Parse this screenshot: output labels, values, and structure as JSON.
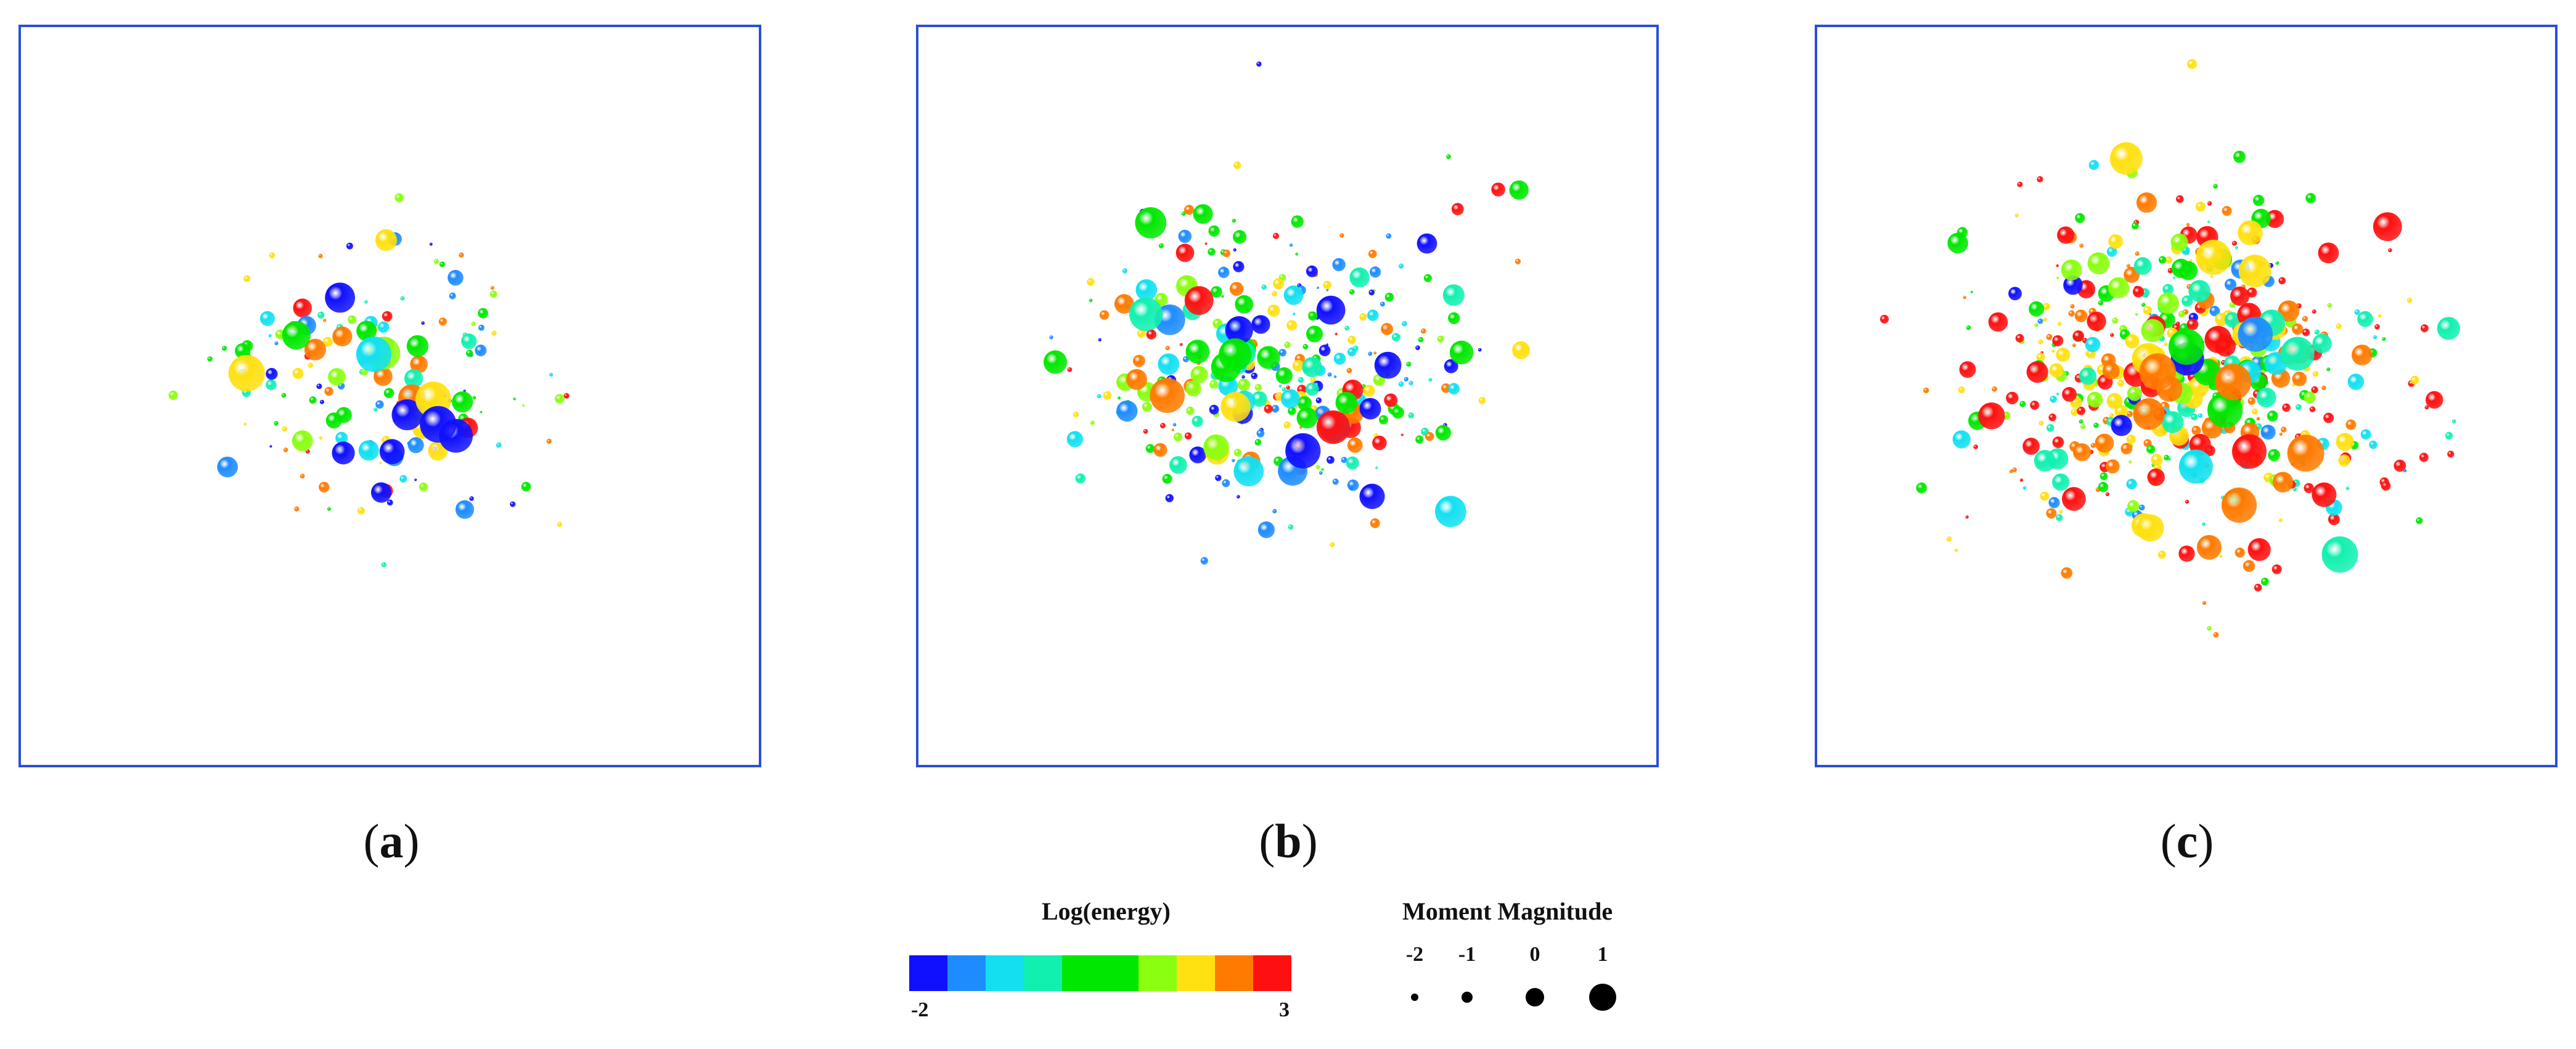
{
  "chart_data": [
    {
      "type": "scatter",
      "title": "",
      "panel_label": "a",
      "color_encoding": "Log(energy)",
      "size_encoding": "Moment Magnitude",
      "event_count_approx": 170,
      "spread": 0.55
    },
    {
      "type": "scatter",
      "title": "",
      "panel_label": "b",
      "color_encoding": "Log(energy)",
      "size_encoding": "Moment Magnitude",
      "event_count_approx": 330,
      "spread": 0.65
    },
    {
      "type": "scatter",
      "title": "",
      "panel_label": "c",
      "color_encoding": "Log(energy)",
      "size_encoding": "Moment Magnitude",
      "event_count_approx": 560,
      "spread": 0.72
    }
  ],
  "captions": {
    "open": "(",
    "close": ")",
    "a": "a",
    "b": "b",
    "c": "c"
  },
  "legend": {
    "energy_title": "Log(energy)",
    "energy_min": "-2",
    "energy_max": "3",
    "colors": [
      "#1010ff",
      "#1e8cff",
      "#12e0f0",
      "#12f0b0",
      "#00e800",
      "#00e800",
      "#8aff10",
      "#ffe010",
      "#ff7a00",
      "#ff1010"
    ],
    "magnitude_title": "Moment Magnitude",
    "magnitude_labels": [
      "-2",
      "-1",
      "0",
      "1"
    ]
  }
}
